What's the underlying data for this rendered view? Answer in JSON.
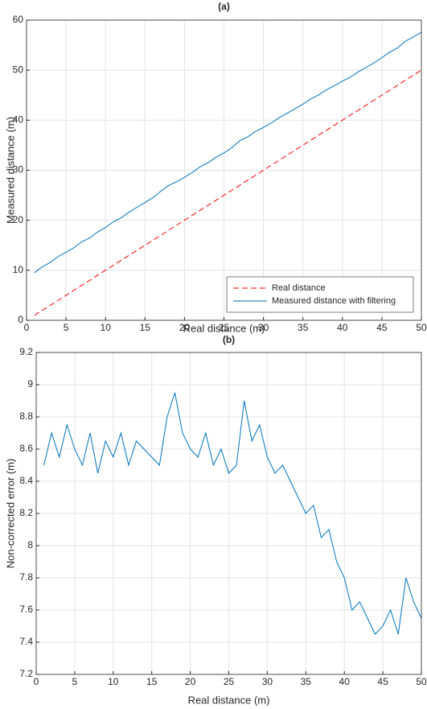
{
  "chart_data": [
    {
      "type": "line",
      "title": "(a)",
      "xlabel": "Real distance (m)",
      "ylabel": "Measured distance (m)",
      "x": [
        1,
        2,
        3,
        4,
        5,
        6,
        7,
        8,
        9,
        10,
        11,
        12,
        13,
        14,
        15,
        16,
        17,
        18,
        19,
        20,
        21,
        22,
        23,
        24,
        25,
        26,
        27,
        28,
        29,
        30,
        31,
        32,
        33,
        34,
        35,
        36,
        37,
        38,
        39,
        40,
        41,
        42,
        43,
        44,
        45,
        46,
        47,
        48,
        49,
        50
      ],
      "series": [
        {
          "name": "Real distance",
          "color": "#ff0000",
          "line_style": "dashed",
          "values": [
            1,
            2,
            3,
            4,
            5,
            6,
            7,
            8,
            9,
            10,
            11,
            12,
            13,
            14,
            15,
            16,
            17,
            18,
            19,
            20,
            21,
            22,
            23,
            24,
            25,
            26,
            27,
            28,
            29,
            30,
            31,
            32,
            33,
            34,
            35,
            36,
            37,
            38,
            39,
            40,
            41,
            42,
            43,
            44,
            45,
            46,
            47,
            48,
            49,
            50
          ]
        },
        {
          "name": "Measured distance with filtering",
          "color": "#0072bd",
          "line_style": "solid",
          "values": [
            9.5,
            10.7,
            11.55,
            12.75,
            13.6,
            14.5,
            15.7,
            16.45,
            17.65,
            18.55,
            19.7,
            20.5,
            21.65,
            22.6,
            23.55,
            24.5,
            25.8,
            26.95,
            27.7,
            28.6,
            29.55,
            30.7,
            31.5,
            32.6,
            33.45,
            34.5,
            35.9,
            36.65,
            37.75,
            38.55,
            39.45,
            40.5,
            41.4,
            42.3,
            43.2,
            44.25,
            45.05,
            46.1,
            46.9,
            47.8,
            48.6,
            49.65,
            50.55,
            51.45,
            52.5,
            53.6,
            54.45,
            55.8,
            56.65,
            57.55
          ]
        }
      ],
      "xlim": [
        0,
        50
      ],
      "xticks": [
        0,
        5,
        10,
        15,
        20,
        25,
        30,
        35,
        40,
        45,
        50
      ],
      "ylim": [
        0,
        60
      ],
      "yticks": [
        0,
        10,
        20,
        30,
        40,
        50,
        60
      ],
      "grid": true,
      "legend": "lower right"
    },
    {
      "type": "line",
      "title": "(b)",
      "xlabel": "Real distance (m)",
      "ylabel": "Non-corrected error (m)",
      "x": [
        1,
        2,
        3,
        4,
        5,
        6,
        7,
        8,
        9,
        10,
        11,
        12,
        13,
        14,
        15,
        16,
        17,
        18,
        19,
        20,
        21,
        22,
        23,
        24,
        25,
        26,
        27,
        28,
        29,
        30,
        31,
        32,
        33,
        34,
        35,
        36,
        37,
        38,
        39,
        40,
        41,
        42,
        43,
        44,
        45,
        46,
        47,
        48,
        49,
        50
      ],
      "series": [
        {
          "name": null,
          "color": "#0072bd",
          "line_style": "solid",
          "values": [
            8.5,
            8.7,
            8.55,
            8.75,
            8.6,
            8.5,
            8.7,
            8.45,
            8.65,
            8.55,
            8.7,
            8.5,
            8.65,
            8.6,
            8.55,
            8.5,
            8.8,
            8.95,
            8.7,
            8.6,
            8.55,
            8.7,
            8.5,
            8.6,
            8.45,
            8.5,
            8.9,
            8.65,
            8.75,
            8.55,
            8.45,
            8.5,
            8.4,
            8.3,
            8.2,
            8.25,
            8.05,
            8.1,
            7.9,
            7.8,
            7.6,
            7.65,
            7.55,
            7.45,
            7.5,
            7.6,
            7.45,
            7.8,
            7.65,
            7.55
          ]
        }
      ],
      "xlim": [
        0,
        50
      ],
      "xticks": [
        0,
        5,
        10,
        15,
        20,
        25,
        30,
        35,
        40,
        45,
        50
      ],
      "ylim": [
        7.2,
        9.2
      ],
      "yticks": [
        7.2,
        7.4,
        7.6,
        7.8,
        8,
        8.2,
        8.4,
        8.6,
        8.8,
        9,
        9.2
      ],
      "grid": true
    }
  ]
}
